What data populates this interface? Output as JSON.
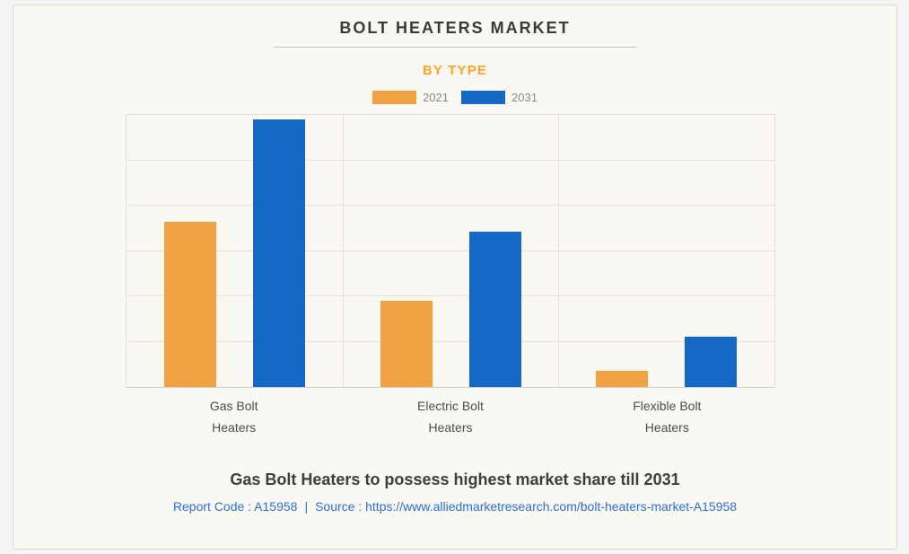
{
  "page": {
    "background": "#F4F4F5",
    "card_background": "#FAF8F2",
    "card_border": "#DBD9D4"
  },
  "chart_data": {
    "type": "bar",
    "title": "BOLT HEATERS MARKET",
    "subtitle": "BY TYPE",
    "subtitle_color": "#FBA328",
    "categories": [
      "Gas Bolt Heaters",
      "Electric Bolt Heaters",
      "Flexible Bolt Heaters"
    ],
    "category_label_lines": [
      [
        "Gas Bolt",
        "Heaters"
      ],
      [
        "Electric Bolt",
        "Heaters"
      ],
      [
        "Flexible Bolt",
        "Heaters"
      ]
    ],
    "series": [
      {
        "name": "2021",
        "color": "#F0A144",
        "values": [
          3.65,
          1.9,
          0.35
        ]
      },
      {
        "name": "2031",
        "color": "#1668C6",
        "values": [
          5.9,
          3.42,
          1.1
        ]
      }
    ],
    "ylim": [
      0,
      6
    ],
    "y_gridlines": 6,
    "grid": true,
    "legend_position": "top",
    "y_axis_labels_visible": false,
    "xlabel": "",
    "ylabel": ""
  },
  "footer": {
    "headline": "Gas Bolt Heaters to possess highest market share till 2031",
    "report_code": "Report Code : A15958",
    "separator": "|",
    "source": "Source : https://www.alliedmarketresearch.com/bolt-heaters-market-A15958",
    "link_color": "#2B6FD6"
  }
}
